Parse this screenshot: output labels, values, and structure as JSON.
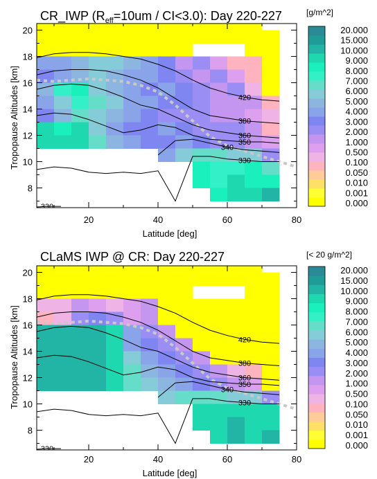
{
  "colorbar": {
    "labels": [
      "0.000",
      "0.001",
      "0.010",
      "0.050",
      "0.100",
      "0.500",
      "1.000",
      "2.000",
      "3.000",
      "4.000",
      "5.000",
      "6.000",
      "7.000",
      "8.000",
      "9.000",
      "10.000",
      "15.000",
      "20.000"
    ],
    "colors": [
      "#ffff00",
      "#ffff33",
      "#ffe066",
      "#ffcc99",
      "#ffb3bf",
      "#f0b3e6",
      "#dda0ee",
      "#c496f0",
      "#9a8ef5",
      "#7f86f2",
      "#8aa4ea",
      "#8cb6e0",
      "#86ccd8",
      "#66ddc9",
      "#33f0c8",
      "#19f0bb",
      "#1ed8b0",
      "#22b5a5",
      "#1f9c98",
      "#2a8a95"
    ]
  },
  "panels": [
    {
      "title_main": "CR_IWP (R",
      "title_sub": "eff",
      "title_rest": "=10um / CI<3.0):  Day 220-227",
      "units": "[g/m^2]",
      "xlabel": "Latitude [deg]",
      "ylabel": "Tropopause Altitudes [km]"
    },
    {
      "title_main": "CLaMS IWP @ CR:  Day 220-227",
      "title_sub": "",
      "title_rest": "",
      "units": "[< 20 g/m^2]",
      "xlabel": "Latitude [deg]",
      "ylabel": "Tropopause Altitudes [km]"
    }
  ],
  "chart_data": [
    {
      "type": "heatmap",
      "title": "CR_IWP (Reff=10um / CI<3.0):  Day 220-227",
      "xlabel": "Latitude [deg]",
      "ylabel": "Tropopause Altitudes [km]",
      "colorbar_label": "[g/m^2]",
      "xlim": [
        5,
        80
      ],
      "ylim": [
        6.5,
        20.5
      ],
      "xticks": [
        20,
        40,
        60,
        80
      ],
      "yticks": [
        8,
        10,
        12,
        14,
        16,
        18,
        20
      ],
      "lat_bins": [
        5,
        10,
        15,
        20,
        25,
        30,
        35,
        40,
        45,
        50,
        55,
        60,
        65,
        70,
        75
      ],
      "alt_bins": [
        6.5,
        7,
        8,
        9,
        10,
        11,
        12,
        13,
        14,
        15,
        16,
        17,
        18,
        19,
        20,
        20.5
      ],
      "cells": [
        [
          0,
          0,
          0,
          0,
          0,
          0,
          0,
          0,
          0,
          0,
          0,
          0,
          0,
          null,
          null
        ],
        [
          0,
          0,
          0,
          0,
          0,
          0,
          0,
          0,
          0,
          0,
          0,
          0,
          0,
          0,
          null
        ],
        [
          0,
          0,
          0,
          0,
          0,
          0,
          0,
          0,
          0,
          null,
          null,
          null,
          0,
          0,
          null
        ],
        [
          4,
          4,
          5,
          6,
          6,
          5,
          4,
          3,
          1,
          2,
          0.5,
          0.05,
          0.05,
          0,
          null
        ],
        [
          3,
          4,
          5,
          6,
          5,
          4,
          4,
          3,
          2,
          1,
          2,
          0.5,
          0.05,
          0,
          null
        ],
        [
          5,
          8,
          9,
          6,
          5,
          4,
          3,
          4,
          3,
          2,
          1,
          2,
          0.1,
          0,
          null
        ],
        [
          4,
          6,
          8,
          7,
          6,
          4,
          4,
          3,
          3,
          2,
          1,
          1,
          1,
          0.05,
          null
        ],
        [
          3,
          5,
          7,
          6,
          5,
          4,
          3,
          2,
          2,
          2,
          1,
          1,
          0.5,
          0.1,
          null
        ],
        [
          11,
          9,
          10,
          6,
          4,
          3,
          3,
          4,
          3,
          2,
          2,
          2,
          1,
          0.05,
          null
        ],
        [
          12,
          11,
          10,
          7,
          5,
          4,
          3,
          3,
          4,
          3,
          2,
          2,
          1,
          0.5,
          null
        ],
        [
          null,
          null,
          null,
          null,
          null,
          null,
          null,
          4,
          6,
          7,
          7,
          6,
          6,
          2,
          null
        ],
        [
          null,
          null,
          null,
          null,
          null,
          null,
          null,
          null,
          null,
          9,
          8,
          8,
          9,
          7,
          null
        ],
        [
          null,
          null,
          null,
          null,
          null,
          null,
          null,
          null,
          null,
          9,
          8,
          10,
          9,
          9,
          null
        ],
        [
          null,
          null,
          null,
          null,
          null,
          null,
          null,
          null,
          null,
          null,
          9,
          10,
          10,
          18,
          null
        ]
      ],
      "contours": [
        {
          "label": "420",
          "lat": [
            5,
            10,
            15,
            20,
            25,
            30,
            35,
            40,
            45,
            50,
            55,
            60,
            65,
            70,
            75
          ],
          "alt": [
            17.9,
            18.2,
            18.3,
            18.3,
            18.2,
            18.0,
            17.8,
            17.4,
            16.9,
            16.2,
            15.6,
            15.2,
            14.9,
            14.7,
            14.6
          ]
        },
        {
          "label": "380",
          "lat": [
            5,
            10,
            15,
            20,
            25,
            30,
            35,
            40,
            45,
            50,
            55,
            60,
            65,
            70,
            75
          ],
          "alt": [
            16.6,
            16.9,
            17.0,
            17.0,
            16.9,
            16.6,
            16.2,
            15.6,
            14.8,
            14.0,
            13.5,
            13.3,
            13.1,
            13.0,
            12.9
          ]
        },
        {
          "label": "360",
          "lat": [
            5,
            10,
            15,
            20,
            25,
            30,
            35,
            40,
            45,
            50,
            55,
            60,
            65,
            70,
            75
          ],
          "alt": [
            15.5,
            15.8,
            15.9,
            15.8,
            15.4,
            14.9,
            14.3,
            14.0,
            13.4,
            12.8,
            12.4,
            12.2,
            12.0,
            11.9,
            11.8
          ]
        },
        {
          "label": "350",
          "lat": [
            5,
            10,
            15,
            20,
            25,
            30,
            35,
            40,
            45,
            50,
            55,
            60,
            65,
            70,
            75
          ],
          "alt": [
            13.5,
            13.7,
            13.6,
            13.2,
            12.7,
            12.2,
            12.4,
            12.8,
            12.6,
            12.0,
            11.7,
            11.6,
            11.5,
            11.5,
            11.4
          ]
        },
        {
          "label": "340",
          "lat": [
            40,
            45,
            50,
            55,
            60,
            65,
            70,
            75
          ],
          "alt": [
            10.5,
            11.6,
            11.7,
            11.4,
            11.1,
            10.9,
            10.8,
            10.7
          ]
        },
        {
          "label": "330",
          "lat": [
            5,
            10,
            15,
            20,
            25,
            30,
            35,
            40,
            45,
            50,
            55,
            60,
            65,
            70,
            75
          ],
          "alt": [
            9.4,
            9.6,
            9.5,
            9.2,
            9.1,
            9.2,
            9.1,
            9.3,
            7.0,
            10.4,
            10.4,
            10.2,
            10.1,
            10.0,
            10.0
          ]
        },
        {
          "label": "330",
          "lat": [
            5,
            8,
            12
          ],
          "alt": [
            6.55,
            6.6,
            6.6
          ]
        }
      ],
      "dashed_line": {
        "lat": [
          5,
          10,
          15,
          20,
          25,
          30,
          35,
          40,
          45,
          50,
          55,
          60,
          65,
          70,
          75,
          80
        ],
        "alt": [
          16.2,
          16.1,
          16.2,
          16.3,
          16.2,
          16.1,
          15.8,
          15.3,
          14.3,
          13.1,
          11.9,
          11.2,
          10.8,
          10.4,
          10.0,
          9.6
        ]
      }
    },
    {
      "type": "heatmap",
      "title": "CLaMS IWP @ CR:  Day 220-227",
      "xlabel": "Latitude [deg]",
      "ylabel": "Tropopause Altitudes [km]",
      "colorbar_label": "[< 20 g/m^2]",
      "xlim": [
        5,
        80
      ],
      "ylim": [
        6.5,
        20.5
      ],
      "xticks": [
        20,
        40,
        60,
        80
      ],
      "yticks": [
        8,
        10,
        12,
        14,
        16,
        18,
        20
      ],
      "lat_bins": [
        5,
        10,
        15,
        20,
        25,
        30,
        35,
        40,
        45,
        50,
        55,
        60,
        65,
        70,
        75
      ],
      "alt_bins": [
        6.5,
        7,
        8,
        9,
        10,
        11,
        12,
        13,
        14,
        15,
        16,
        17,
        18,
        19,
        20,
        20.5
      ],
      "cells": [
        [
          0,
          0,
          0,
          0,
          0,
          0,
          0,
          0,
          0,
          0,
          0,
          0,
          0,
          null,
          null
        ],
        [
          0,
          0,
          0,
          0,
          0,
          0,
          0,
          0,
          0,
          0,
          0,
          0,
          0,
          0,
          null
        ],
        [
          0,
          0,
          0,
          0,
          0,
          0,
          0,
          0,
          0,
          null,
          null,
          null,
          0,
          0,
          null
        ],
        [
          0.1,
          0.1,
          1,
          0.5,
          0.1,
          0.5,
          1,
          0,
          0,
          0,
          0,
          0,
          0,
          0,
          null
        ],
        [
          0.05,
          0.1,
          2,
          3,
          2,
          0.5,
          1,
          0,
          0,
          0,
          0,
          0,
          0,
          0,
          null
        ],
        [
          15,
          15,
          15,
          15,
          10,
          4,
          2,
          1,
          0,
          0,
          0,
          0,
          0,
          0,
          null
        ],
        [
          15,
          15,
          15,
          15,
          10,
          4,
          3,
          2,
          1,
          0,
          0,
          0,
          0,
          0,
          null
        ],
        [
          15,
          15,
          15,
          15,
          10,
          6,
          4,
          3,
          2,
          1,
          0,
          0,
          0,
          0,
          null
        ],
        [
          15,
          15,
          15,
          15,
          10,
          7,
          5,
          4,
          3,
          2,
          1,
          0.1,
          0.05,
          0,
          null
        ],
        [
          15,
          15,
          15,
          15,
          10,
          7,
          6,
          5,
          4,
          3,
          2,
          1,
          0.5,
          0,
          null
        ],
        [
          null,
          null,
          null,
          null,
          null,
          null,
          null,
          6,
          7,
          7,
          7,
          6,
          6,
          2,
          null
        ],
        [
          null,
          null,
          null,
          null,
          null,
          null,
          null,
          null,
          null,
          10,
          10,
          10,
          10,
          10,
          null
        ],
        [
          null,
          null,
          null,
          null,
          null,
          null,
          null,
          null,
          null,
          10,
          10,
          15,
          10,
          10,
          null
        ],
        [
          null,
          null,
          null,
          null,
          null,
          null,
          null,
          null,
          null,
          null,
          10,
          15,
          10,
          15,
          null
        ]
      ],
      "contours": [
        {
          "label": "420",
          "lat": [
            5,
            10,
            15,
            20,
            25,
            30,
            35,
            40,
            45,
            50,
            55,
            60,
            65,
            70,
            75
          ],
          "alt": [
            17.9,
            18.2,
            18.3,
            18.3,
            18.2,
            18.0,
            17.8,
            17.4,
            16.9,
            16.2,
            15.6,
            15.2,
            14.9,
            14.7,
            14.6
          ]
        },
        {
          "label": "380",
          "lat": [
            5,
            10,
            15,
            20,
            25,
            30,
            35,
            40,
            45,
            50,
            55,
            60,
            65,
            70,
            75
          ],
          "alt": [
            16.6,
            16.9,
            17.0,
            17.0,
            16.9,
            16.6,
            16.2,
            15.6,
            14.8,
            14.0,
            13.5,
            13.3,
            13.1,
            13.0,
            12.9
          ]
        },
        {
          "label": "360",
          "lat": [
            5,
            10,
            15,
            20,
            25,
            30,
            35,
            40,
            45,
            50,
            55,
            60,
            65,
            70,
            75
          ],
          "alt": [
            15.5,
            15.8,
            15.9,
            15.8,
            15.4,
            14.9,
            14.3,
            14.0,
            13.4,
            12.8,
            12.4,
            12.2,
            12.0,
            11.9,
            11.8
          ]
        },
        {
          "label": "350",
          "lat": [
            5,
            10,
            15,
            20,
            25,
            30,
            35,
            40,
            45,
            50,
            55,
            60,
            65,
            70,
            75
          ],
          "alt": [
            13.5,
            13.7,
            13.6,
            13.2,
            12.7,
            12.2,
            12.4,
            12.8,
            12.6,
            12.0,
            11.7,
            11.6,
            11.5,
            11.5,
            11.4
          ]
        },
        {
          "label": "340",
          "lat": [
            40,
            45,
            50,
            55,
            60,
            65,
            70,
            75
          ],
          "alt": [
            10.5,
            11.6,
            11.7,
            11.4,
            11.1,
            10.9,
            10.8,
            10.7
          ]
        },
        {
          "label": "330",
          "lat": [
            5,
            10,
            15,
            20,
            25,
            30,
            35,
            40,
            45,
            50,
            55,
            60,
            65,
            70,
            75
          ],
          "alt": [
            9.4,
            9.6,
            9.5,
            9.2,
            9.1,
            9.2,
            9.1,
            9.3,
            7.0,
            10.4,
            10.4,
            10.2,
            10.1,
            10.0,
            10.0
          ]
        },
        {
          "label": "330",
          "lat": [
            5,
            8,
            12
          ],
          "alt": [
            6.55,
            6.6,
            6.6
          ]
        }
      ],
      "dashed_line": {
        "lat": [
          5,
          10,
          15,
          20,
          25,
          30,
          35,
          40,
          45,
          50,
          55,
          60,
          65,
          70,
          75,
          80
        ],
        "alt": [
          16.2,
          16.1,
          16.2,
          16.3,
          16.2,
          16.1,
          15.8,
          15.3,
          14.3,
          13.1,
          11.9,
          11.2,
          10.8,
          10.4,
          10.0,
          9.6
        ]
      }
    }
  ]
}
